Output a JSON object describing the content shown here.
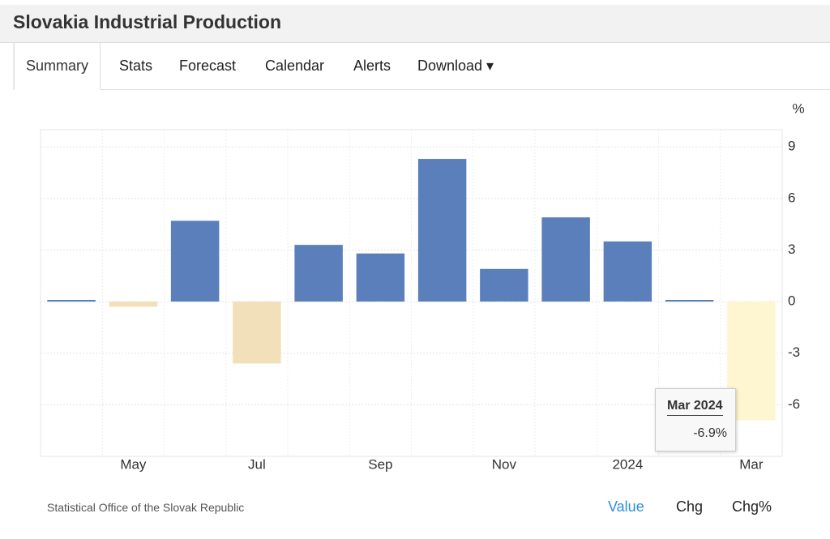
{
  "header": {
    "title": "Slovakia Industrial Production"
  },
  "tabs": [
    "Summary",
    "Stats",
    "Forecast",
    "Calendar",
    "Alerts",
    "Download ▾"
  ],
  "chart_data": {
    "type": "bar",
    "categories": [
      null,
      "May",
      null,
      "Jul",
      null,
      "Sep",
      null,
      "Nov",
      null,
      "2024",
      null,
      "Mar"
    ],
    "values": [
      0.1,
      -0.3,
      4.7,
      -3.6,
      3.3,
      2.8,
      8.3,
      1.9,
      4.9,
      3.5,
      0.1,
      -6.9
    ],
    "color": "#5b7fbb",
    "negative_color": "#f1e0b9",
    "highlight_color": "#fdf6d0",
    "ylim": [
      -9,
      10
    ],
    "yticks": [
      -6,
      -3,
      0,
      3,
      6,
      9
    ],
    "y_unit": "%",
    "grid": true,
    "tooltip": {
      "index": 11,
      "title": "Mar 2024",
      "label": "-6.9%"
    }
  },
  "footer": {
    "source": "Statistical Office of the Slovak Republic",
    "buttons": [
      "Value",
      "Chg",
      "Chg%"
    ]
  }
}
